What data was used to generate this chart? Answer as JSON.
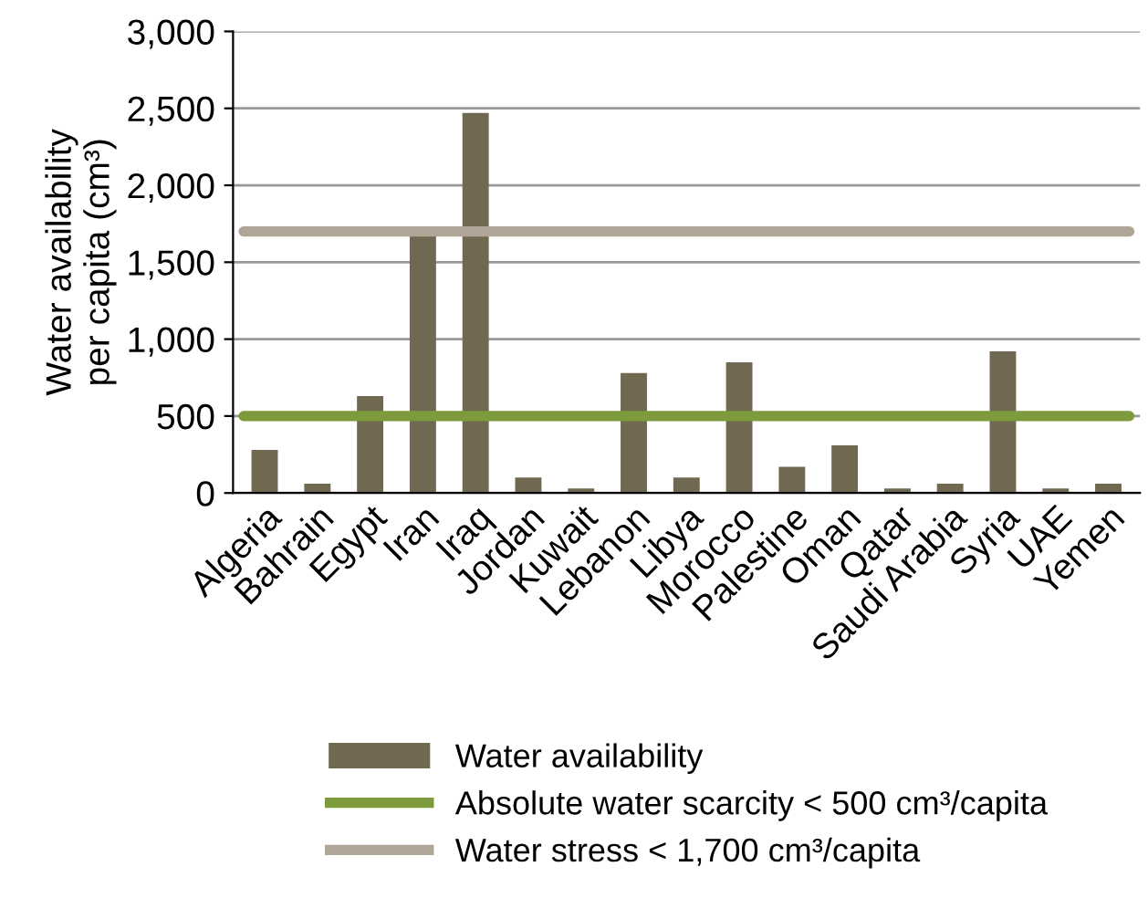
{
  "chart_data": {
    "type": "bar",
    "ylabel": "Water availability\nper capita (cm³)",
    "categories": [
      "Algeria",
      "Bahrain",
      "Egypt",
      "Iran",
      "Iraq",
      "Jordan",
      "Kuwait",
      "Lebanon",
      "Libya",
      "Morocco",
      "Palestine",
      "Oman",
      "Qatar",
      "Saudi Arabia",
      "Syria",
      "UAE",
      "Yemen"
    ],
    "series": [
      {
        "name": "Water availability",
        "color": "#706850",
        "values": [
          280,
          60,
          630,
          1690,
          2470,
          100,
          30,
          780,
          100,
          850,
          170,
          310,
          30,
          60,
          920,
          30,
          60
        ]
      }
    ],
    "ref_lines": [
      {
        "axis": "y",
        "value": 500,
        "label": "Absolute water scarcity < 500 cm³/capita",
        "color": "#7d9a3c"
      },
      {
        "axis": "y",
        "value": 1700,
        "label": "Water stress < 1,700 cm³/capita",
        "color": "#b0a698"
      }
    ],
    "ylim": [
      0,
      3000
    ],
    "yticks": [
      0,
      {
        "value": 500,
        "label": "500"
      },
      {
        "value": 1000,
        "label": "1,000"
      },
      {
        "value": 1500,
        "label": "1,500"
      },
      {
        "value": 2000,
        "label": "2,000"
      },
      {
        "value": 2500,
        "label": "2,500"
      },
      {
        "value": 3000,
        "label": "3,000"
      }
    ],
    "grid": "y",
    "legend": "bottom"
  }
}
